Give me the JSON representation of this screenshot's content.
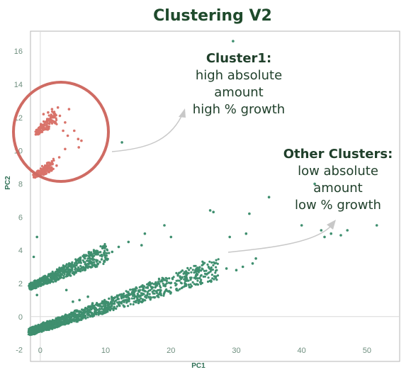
{
  "chart_data": {
    "type": "scatter",
    "title": "Clustering V2",
    "xlabel": "PC1",
    "ylabel": "PC2",
    "xlim": [
      -1.5,
      55
    ],
    "ylim": [
      -2.7,
      17.2
    ],
    "xticks": [
      "0",
      "10",
      "20",
      "30",
      "40",
      "50"
    ],
    "yticks": [
      "-2",
      "0",
      "2",
      "4",
      "6",
      "8",
      "10",
      "12",
      "14",
      "16"
    ],
    "grid": false,
    "colors": {
      "cluster1": "#d9736a",
      "other": "#3f8f6f",
      "circle": "#cf6b63",
      "arrow": "#c8c8c8",
      "frame": "#b5b5b5"
    },
    "series": [
      {
        "cluster": "cluster1",
        "band_upper": {
          "x_from": -0.5,
          "x_to": 2.5,
          "y_at_from": 11.1,
          "y_at_to": 12.1
        },
        "band_lower": {
          "x_from": -0.8,
          "x_to": 2.0,
          "y_at_from": 8.5,
          "y_at_to": 9.2
        },
        "points": [
          [
            0.5,
            12.2
          ],
          [
            1.2,
            12.3
          ],
          [
            1.8,
            12.5
          ],
          [
            2.7,
            12.6
          ],
          [
            3.0,
            12.1
          ],
          [
            4.4,
            12.5
          ],
          [
            3.8,
            11.7
          ],
          [
            3.5,
            11.2
          ],
          [
            4.2,
            10.9
          ],
          [
            5.2,
            11.2
          ],
          [
            5.8,
            10.7
          ],
          [
            6.3,
            10.6
          ],
          [
            5.9,
            10.2
          ],
          [
            3.8,
            10.1
          ],
          [
            2.9,
            9.6
          ],
          [
            2.5,
            9.1
          ]
        ]
      },
      {
        "cluster": "other",
        "band_upper": {
          "x_from": -1.5,
          "x_to": 10.5,
          "y_at_from": 1.8,
          "y_at_to": 3.9
        },
        "band_lower": {
          "x_from": -1.5,
          "x_to": 27,
          "y_at_from": -0.9,
          "y_at_to": 2.9
        },
        "points": [
          [
            29.5,
            16.6
          ],
          [
            12.5,
            10.5
          ],
          [
            42,
            8.0
          ],
          [
            35,
            7.2
          ],
          [
            26,
            6.4
          ],
          [
            26.5,
            6.3
          ],
          [
            32,
            6.2
          ],
          [
            31.5,
            5.0
          ],
          [
            29,
            4.8
          ],
          [
            40,
            5.5
          ],
          [
            43,
            5.2
          ],
          [
            44.5,
            5.0
          ],
          [
            46,
            4.9
          ],
          [
            51.5,
            5.5
          ],
          [
            47,
            5.2
          ],
          [
            43.5,
            4.8
          ],
          [
            19,
            5.5
          ],
          [
            20,
            4.8
          ],
          [
            16,
            5.0
          ],
          [
            15.5,
            4.3
          ],
          [
            13.5,
            4.5
          ],
          [
            12,
            4.2
          ],
          [
            11,
            3.9
          ],
          [
            -0.5,
            4.8
          ],
          [
            -1,
            3.6
          ],
          [
            6,
            1.0
          ],
          [
            6.5,
            0.4
          ],
          [
            5,
            0.9
          ],
          [
            8,
            0.8
          ],
          [
            7.3,
            1.2
          ],
          [
            4,
            1.6
          ],
          [
            -0.5,
            1.3
          ],
          [
            33,
            3.5
          ],
          [
            32.5,
            3.2
          ],
          [
            30,
            2.8
          ],
          [
            28.5,
            2.9
          ],
          [
            31,
            3.0
          ]
        ]
      }
    ],
    "annotations": [
      {
        "heading": "Cluster1:",
        "lines": [
          "high absolute",
          "amount",
          "high % growth"
        ]
      },
      {
        "heading": "Other Clusters:",
        "lines": [
          "low absolute",
          "amount",
          "low % growth"
        ]
      }
    ]
  }
}
